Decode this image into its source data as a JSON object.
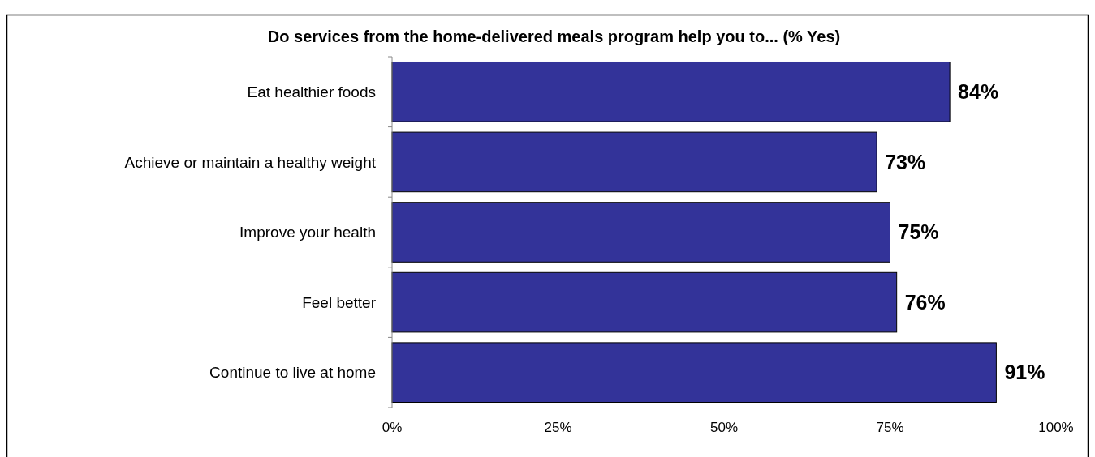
{
  "chart_data": {
    "type": "bar",
    "orientation": "horizontal",
    "title": "Do services from the home-delivered meals program help you to... (% Yes)",
    "categories": [
      "Eat healthier foods",
      "Achieve or maintain a healthy weight",
      "Improve your health",
      "Feel better",
      "Continue to live at home"
    ],
    "values": [
      84,
      73,
      75,
      76,
      91
    ],
    "value_labels": [
      "84%",
      "73%",
      "75%",
      "76%",
      "91%"
    ],
    "color": "#333399",
    "xlim": [
      0,
      100
    ],
    "xticks": [
      {
        "value": 0,
        "label": "0%"
      },
      {
        "value": 25,
        "label": "25%"
      },
      {
        "value": 50,
        "label": "50%"
      },
      {
        "value": 75,
        "label": "75%"
      },
      {
        "value": 100,
        "label": "100%"
      }
    ],
    "grid": false
  }
}
